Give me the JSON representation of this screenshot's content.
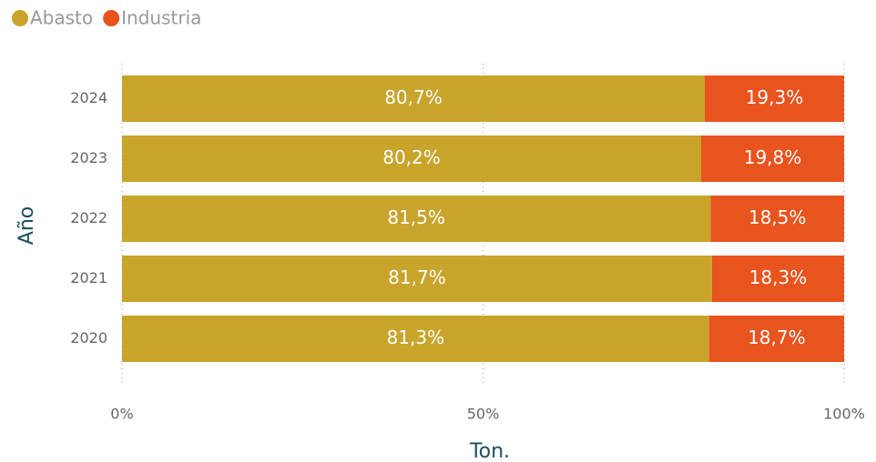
{
  "chart_data": {
    "type": "stacked_barh",
    "categories": [
      "2024",
      "2023",
      "2022",
      "2021",
      "2020"
    ],
    "series": [
      {
        "name": "Abasto",
        "color": "#c8a42b",
        "values": [
          80.7,
          80.2,
          81.5,
          81.7,
          81.3
        ],
        "value_labels": [
          "80,7%",
          "80,2%",
          "81,5%",
          "81,7%",
          "81,3%"
        ]
      },
      {
        "name": "Industria",
        "color": "#e8531e",
        "values": [
          19.3,
          19.8,
          18.5,
          18.3,
          18.7
        ],
        "value_labels": [
          "19,3%",
          "19,8%",
          "18,5%",
          "18,3%",
          "18,7%"
        ]
      }
    ],
    "xlim": [
      0,
      100
    ],
    "xticks": [
      {
        "value": 0,
        "label": "0%"
      },
      {
        "value": 50,
        "label": "50%"
      },
      {
        "value": 100,
        "label": "100%"
      }
    ],
    "xlabel": "Ton.",
    "ylabel": "Año",
    "grid": true,
    "legend": "top-left"
  }
}
